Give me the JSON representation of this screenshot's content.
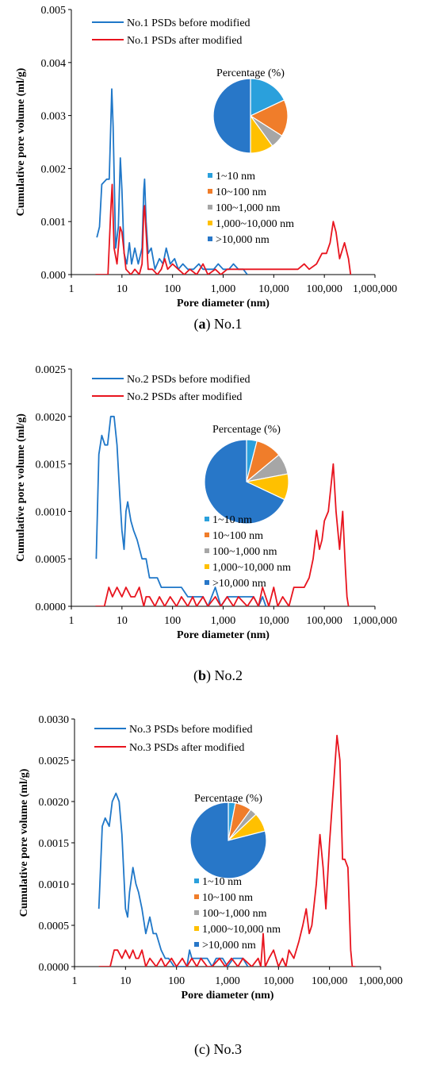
{
  "chart_data": [
    {
      "type": "line",
      "caption": {
        "letter": "a",
        "text": " No.1"
      },
      "xlabel": "Pore diameter (nm)",
      "ylabel": "Cumulative pore volume (ml/g)",
      "xscale": "log",
      "xlim": [
        1,
        1000000
      ],
      "ylim": [
        0,
        0.005
      ],
      "x_ticks": [
        "1",
        "10",
        "100",
        "1,000",
        "10,000",
        "100,000",
        "1,000,000"
      ],
      "y_ticks": [
        "0.000",
        "0.001",
        "0.002",
        "0.003",
        "0.004",
        "0.005"
      ],
      "grid": false,
      "legend": "top-left",
      "series": [
        {
          "name": "No.1 PSDs before modified",
          "color": "#1f77c8",
          "x": [
            3.2,
            3.6,
            4.0,
            5.0,
            5.6,
            6.0,
            6.3,
            6.7,
            7.5,
            8.5,
            9.3,
            10.0,
            11.0,
            12.5,
            14.0,
            15.5,
            18,
            21,
            25,
            27,
            28,
            30,
            33,
            38,
            45,
            55,
            65,
            75,
            90,
            110,
            130,
            160,
            200,
            260,
            330,
            400,
            500,
            650,
            800,
            1000,
            1300,
            1600,
            2000,
            2500,
            3000
          ],
          "y": [
            0.0007,
            0.0009,
            0.0017,
            0.0018,
            0.0018,
            0.0028,
            0.0035,
            0.0028,
            0.0005,
            0.0009,
            0.0022,
            0.0016,
            0.0004,
            0.0002,
            0.0006,
            0.0002,
            0.0005,
            0.0002,
            0.0005,
            0.0016,
            0.0018,
            0.001,
            0.0004,
            0.0005,
            0.0001,
            0.0003,
            0.0002,
            0.0005,
            0.0002,
            0.0003,
            0.0001,
            0.0002,
            0.0001,
            0.0001,
            0.0002,
            0.0001,
            0.0001,
            0.0001,
            0.0002,
            0.0001,
            0.0001,
            0.0002,
            0.0001,
            0.0001,
            0.0
          ]
        },
        {
          "name": "No.1 PSDs after modified",
          "color": "#e8141e",
          "x": [
            3.0,
            4.5,
            5.3,
            6.0,
            6.4,
            7.0,
            8.0,
            9.2,
            10,
            12,
            15,
            18,
            22,
            25,
            27,
            28,
            30,
            33,
            40,
            50,
            60,
            70,
            80,
            100,
            130,
            170,
            220,
            300,
            400,
            500,
            700,
            900,
            1200,
            1600,
            2000,
            3000,
            5000,
            8000,
            12000,
            20000,
            30000,
            40000,
            50000,
            70000,
            90000,
            110000,
            130000,
            150000,
            170000,
            200000,
            250000,
            300000,
            330000
          ],
          "y": [
            0.0,
            0.0,
            0.0,
            0.0012,
            0.0017,
            0.0005,
            0.0002,
            0.0009,
            0.0008,
            0.0001,
            0.0,
            0.0001,
            0.0,
            0.0002,
            0.0012,
            0.0013,
            0.0008,
            0.0001,
            0.0001,
            0.0,
            0.0001,
            0.0003,
            0.0001,
            0.0002,
            0.0001,
            0.0,
            0.0001,
            0.0,
            0.0002,
            0.0,
            0.0001,
            0.0,
            0.0001,
            0.0001,
            0.0001,
            0.0001,
            0.0001,
            0.0001,
            0.0001,
            0.0001,
            0.0001,
            0.0002,
            0.0001,
            0.0002,
            0.0004,
            0.0004,
            0.0006,
            0.001,
            0.0008,
            0.0003,
            0.0006,
            0.0003,
            0.0
          ]
        }
      ],
      "pie": {
        "title": "Percentage (%)",
        "labels": [
          "1~10 nm",
          "10~100 nm",
          "100~1,000 nm",
          "1,000~10,000 nm",
          ">10,000 nm"
        ],
        "colors": [
          "#2aa0dc",
          "#f07d2a",
          "#a6a6a6",
          "#ffc000",
          "#2877c8"
        ],
        "values": [
          18,
          16,
          6,
          10,
          50
        ]
      }
    },
    {
      "type": "line",
      "caption": {
        "letter": "b",
        "text": " No.2"
      },
      "xlabel": "Pore diameter (nm)",
      "ylabel": "Cumulative pore volume (ml/g)",
      "xscale": "log",
      "xlim": [
        1,
        1000000
      ],
      "ylim": [
        0,
        0.0025
      ],
      "x_ticks": [
        "1",
        "10",
        "100",
        "1,000",
        "10,000",
        "100,000",
        "1,000,000"
      ],
      "y_ticks": [
        "0.0000",
        "0.0005",
        "0.0010",
        "0.0015",
        "0.0020",
        "0.0025"
      ],
      "grid": false,
      "legend": "top-left",
      "series": [
        {
          "name": "No.2 PSDs before modified",
          "color": "#1f77c8",
          "x": [
            3.1,
            3.5,
            4.0,
            4.6,
            5.2,
            6.0,
            7.0,
            8.0,
            9.0,
            10.0,
            11.0,
            12.0,
            13.0,
            15,
            17,
            20,
            25,
            30,
            35,
            40,
            50,
            60,
            80,
            100,
            150,
            200,
            250,
            300,
            400,
            500,
            700,
            900,
            1200,
            1600,
            2000,
            3000,
            4000,
            5000,
            6000,
            7000
          ],
          "y": [
            0.0005,
            0.0016,
            0.0018,
            0.0017,
            0.0017,
            0.002,
            0.002,
            0.0017,
            0.0012,
            0.0008,
            0.0006,
            0.001,
            0.0011,
            0.0009,
            0.0008,
            0.0007,
            0.0005,
            0.0005,
            0.0003,
            0.0003,
            0.0003,
            0.0002,
            0.0002,
            0.0002,
            0.0002,
            0.0001,
            0.0001,
            0.0001,
            0.0001,
            0.0,
            0.0002,
            0.0,
            0.0001,
            0.0001,
            0.0001,
            0.0001,
            0.0001,
            0.0,
            0.0001,
            0.0
          ]
        },
        {
          "name": "No.2 PSDs after modified",
          "color": "#e8141e",
          "x": [
            3.0,
            4.5,
            5.5,
            6.5,
            8.0,
            10,
            12,
            15,
            18,
            22,
            27,
            30,
            35,
            45,
            55,
            70,
            90,
            120,
            150,
            200,
            250,
            300,
            400,
            500,
            700,
            900,
            1200,
            1600,
            2000,
            3000,
            4000,
            5000,
            6000,
            8000,
            10000,
            12000,
            15000,
            20000,
            25000,
            30000,
            40000,
            50000,
            60000,
            70000,
            80000,
            90000,
            100000,
            120000,
            150000,
            170000,
            200000,
            230000,
            260000,
            280000,
            300000
          ],
          "y": [
            0.0,
            0.0,
            0.0002,
            0.0001,
            0.0002,
            0.0001,
            0.0002,
            0.0001,
            0.0001,
            0.0002,
            0.0,
            0.0001,
            0.0001,
            0.0,
            0.0001,
            0.0,
            0.0001,
            0.0,
            0.0001,
            0.0,
            0.0001,
            0.0,
            0.0001,
            0.0,
            0.0001,
            0.0,
            0.0001,
            0.0,
            0.0001,
            0.0,
            0.0001,
            0.0,
            0.0002,
            0.0,
            0.0002,
            0.0,
            0.0001,
            0.0,
            0.0002,
            0.0002,
            0.0002,
            0.0003,
            0.0005,
            0.0008,
            0.0006,
            0.0007,
            0.0009,
            0.001,
            0.0015,
            0.001,
            0.0006,
            0.001,
            0.0004,
            0.0001,
            0.0
          ]
        }
      ],
      "pie": {
        "title": "Percentage (%)",
        "labels": [
          "1~10 nm",
          "10~100 nm",
          "100~1,000 nm",
          "1,000~10,000 nm",
          ">10,000 nm"
        ],
        "colors": [
          "#2aa0dc",
          "#f07d2a",
          "#a6a6a6",
          "#ffc000",
          "#2877c8"
        ],
        "values": [
          4,
          10,
          8,
          10,
          68
        ]
      }
    },
    {
      "type": "line",
      "caption": {
        "letter": "",
        "text": "(c) No.3"
      },
      "xlabel": "Pore diameter (nm)",
      "ylabel": "Cumulative pore volume (ml/g)",
      "xscale": "log",
      "xlim": [
        1,
        1000000
      ],
      "ylim": [
        0,
        0.003
      ],
      "x_ticks": [
        "1",
        "10",
        "100",
        "1,000",
        "10,000",
        "100,000",
        "1,000,000"
      ],
      "y_ticks": [
        "0.0000",
        "0.0005",
        "0.0010",
        "0.0015",
        "0.0020",
        "0.0025",
        "0.0030"
      ],
      "grid": false,
      "legend": "top-left",
      "series": [
        {
          "name": "No.3 PSDs before modified",
          "color": "#1f77c8",
          "x": [
            3.0,
            3.5,
            4.0,
            4.8,
            5.5,
            6.5,
            7.5,
            8.5,
            10,
            11,
            12,
            14,
            16,
            18,
            21,
            25,
            30,
            35,
            40,
            50,
            60,
            70,
            90,
            110,
            130,
            160,
            180,
            200,
            250,
            300,
            400,
            500,
            600,
            800,
            1000,
            1300,
            1600,
            2000,
            2500
          ],
          "y": [
            0.0007,
            0.0017,
            0.0018,
            0.0017,
            0.002,
            0.0021,
            0.002,
            0.0016,
            0.0007,
            0.0006,
            0.0009,
            0.0012,
            0.001,
            0.0009,
            0.0007,
            0.0004,
            0.0006,
            0.0004,
            0.0004,
            0.0002,
            0.0001,
            0.0001,
            0.0,
            0.0,
            0.0,
            0.0,
            0.0002,
            0.0001,
            0.0001,
            0.0001,
            0.0001,
            0.0,
            0.0001,
            0.0001,
            0.0,
            0.0001,
            0.0001,
            0.0001,
            0.0
          ]
        },
        {
          "name": "No.3 PSDs after modified",
          "color": "#e8141e",
          "x": [
            3.0,
            5.0,
            6.0,
            7.0,
            8.5,
            10,
            12,
            14,
            16,
            18,
            21,
            25,
            30,
            40,
            50,
            60,
            80,
            100,
            130,
            160,
            200,
            250,
            300,
            400,
            500,
            700,
            900,
            1200,
            1600,
            2000,
            3000,
            4000,
            4500,
            5000,
            5500,
            6500,
            8000,
            10000,
            12000,
            14000,
            16000,
            20000,
            25000,
            30000,
            35000,
            40000,
            45000,
            55000,
            65000,
            75000,
            85000,
            100000,
            120000,
            140000,
            160000,
            180000,
            200000,
            230000,
            260000,
            280000,
            300000,
            320000
          ],
          "y": [
            0.0,
            0.0,
            0.0002,
            0.0002,
            0.0001,
            0.0002,
            0.0001,
            0.0002,
            0.0001,
            0.0001,
            0.0002,
            0.0,
            0.0001,
            0.0,
            0.0001,
            0.0,
            0.0001,
            0.0,
            0.0001,
            0.0,
            0.0001,
            0.0,
            0.0001,
            0.0,
            0.0,
            0.0001,
            0.0,
            0.0001,
            0.0,
            0.0001,
            0.0,
            0.0001,
            0.0,
            0.0004,
            0.0,
            0.0001,
            0.0002,
            0.0,
            0.0001,
            0.0,
            0.0002,
            0.0001,
            0.0003,
            0.0005,
            0.0007,
            0.0004,
            0.0005,
            0.001,
            0.0016,
            0.0012,
            0.0007,
            0.0015,
            0.0022,
            0.0028,
            0.0025,
            0.0013,
            0.0013,
            0.0012,
            0.0002,
            0.0,
            0.0,
            0.0
          ]
        }
      ],
      "pie": {
        "title": "Percentage (%)",
        "labels": [
          "1~10 nm",
          "10~100 nm",
          "100~1,000 nm",
          "1,000~10,000 nm",
          ">10,000 nm"
        ],
        "colors": [
          "#2aa0dc",
          "#f07d2a",
          "#a6a6a6",
          "#ffc000",
          "#2877c8"
        ],
        "values": [
          3,
          7,
          3,
          8,
          79
        ]
      }
    }
  ]
}
